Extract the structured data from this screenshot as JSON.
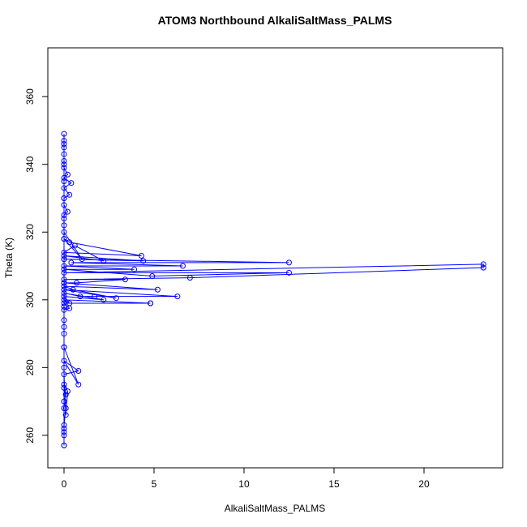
{
  "chart_data": {
    "type": "line",
    "title": "ATOM3 Northbound AlkaliSaltMass_PALMS",
    "x_label": "AlkaliSaltMass_PALMS",
    "y_label": "Theta (K)",
    "color": "#0000ff",
    "x": [
      0,
      0,
      0,
      0,
      0.1,
      0,
      0.1,
      0,
      0.2,
      0.1,
      0,
      0.8,
      0,
      0.8,
      0,
      0,
      0,
      0,
      0.3,
      0,
      4.8,
      4.8,
      0,
      0.3,
      0,
      2.2,
      0,
      0.9,
      1.7,
      6.3,
      0,
      2.9,
      0.5,
      0,
      5.2,
      0,
      0.7,
      3.4,
      0,
      7.0,
      23.3,
      23.3,
      0,
      12.5,
      4.9,
      0,
      3.9,
      0,
      6.6,
      0.4,
      12.5,
      0,
      4.4,
      0,
      2.2,
      0.6,
      0,
      4.3,
      0.3,
      0,
      1.0,
      0,
      0,
      0,
      0.2,
      0,
      0,
      0.3,
      0,
      0.4,
      0,
      0.2,
      0,
      0,
      0,
      0,
      0,
      0,
      0,
      0,
      0,
      0,
      0,
      0,
      0,
      0,
      0,
      0,
      0,
      0,
      0,
      0,
      0,
      0
    ],
    "values": [
      257,
      257,
      262,
      263,
      268,
      270,
      272,
      275,
      273,
      266,
      278,
      279,
      282,
      275,
      286,
      290,
      294,
      297,
      297.5,
      299,
      299,
      299,
      300,
      299,
      301,
      300,
      302,
      301,
      301,
      301,
      303,
      300.5,
      303,
      304,
      303,
      305,
      305,
      306,
      306,
      306.5,
      309.5,
      310.5,
      308,
      308,
      307,
      309,
      309,
      310,
      310,
      311,
      311,
      312,
      311.5,
      313,
      311.5,
      316,
      314,
      313,
      317,
      318,
      312,
      320,
      322,
      325,
      326,
      328,
      330,
      331,
      333,
      334.5,
      336,
      337,
      339,
      341,
      343,
      345,
      347,
      349,
      346,
      340,
      335,
      330,
      324,
      318,
      312,
      305,
      298,
      292,
      286,
      280,
      274,
      268,
      261,
      260
    ],
    "xlim": [
      -0.9,
      24.37
    ],
    "ylim": [
      250.4,
      374.4
    ],
    "xticks": [
      0,
      5,
      10,
      15,
      20
    ],
    "yticks": [
      260,
      280,
      300,
      320,
      340,
      360
    ]
  }
}
